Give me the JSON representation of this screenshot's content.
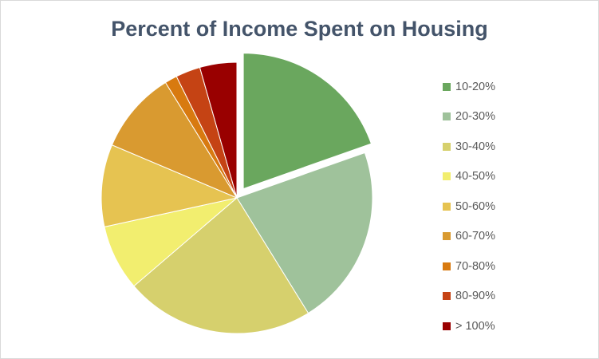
{
  "chart_data": {
    "type": "pie",
    "title": "Percent of Income Spent on Housing",
    "categories": [
      "10-20%",
      "20-30%",
      "30-40%",
      "40-50%",
      "50-60%",
      "60-70%",
      "70-80%",
      "80-90%",
      "> 100%"
    ],
    "values": [
      20,
      22,
      23,
      8,
      10,
      10,
      1.5,
      3,
      4.5
    ],
    "colors": [
      "#6aa75e",
      "#9fc29b",
      "#d6d06d",
      "#f2ee6f",
      "#e6c351",
      "#d99a30",
      "#d87a10",
      "#c54314",
      "#990000"
    ],
    "exploded_slice": "10-20%",
    "legend_position": "right"
  }
}
